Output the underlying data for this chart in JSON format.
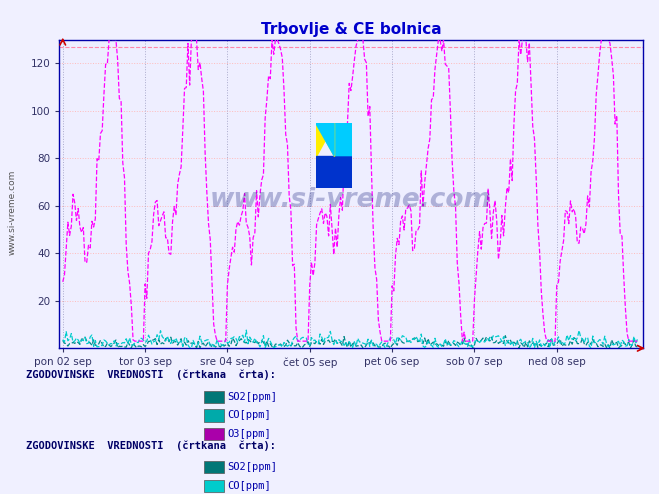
{
  "title": "Trbovlje & CE bolnica",
  "title_color": "#0000cc",
  "bg_color": "#f0f0ff",
  "plot_bg_color": "#eeeeff",
  "xlim": [
    0,
    336
  ],
  "ylim": [
    0,
    130
  ],
  "yticks": [
    20,
    40,
    60,
    80,
    100,
    120
  ],
  "ymax_line": 127,
  "xtick_labels": [
    "pon 02 sep",
    "tor 03 sep",
    "sre 04 sep",
    "čet 05 sep",
    "pet 06 sep",
    "sob 07 sep",
    "ned 08 sep"
  ],
  "xtick_positions": [
    0,
    48,
    96,
    144,
    192,
    240,
    288
  ],
  "line_color_O3": "#ff00ff",
  "line_color_SO2": "#008888",
  "line_color_CO": "#00cccc",
  "watermark": "www.si-vreme.com",
  "ylabel_text": "www.si-vreme.com",
  "legend1_title": "ZGODOVINSKE  VREDNOSTI  (črtkana  črta):",
  "legend2_title": "ZGODOVINSKE  VREDNOSTI  (črtkana  črta):",
  "legend_items": [
    "SO2[ppm]",
    "CO[ppm]",
    "O3[ppm]"
  ],
  "legend_colors1": [
    "#007777",
    "#00aaaa",
    "#aa00aa"
  ],
  "legend_colors2": [
    "#007777",
    "#00cccc",
    "#ff00ff"
  ],
  "n_points": 336
}
